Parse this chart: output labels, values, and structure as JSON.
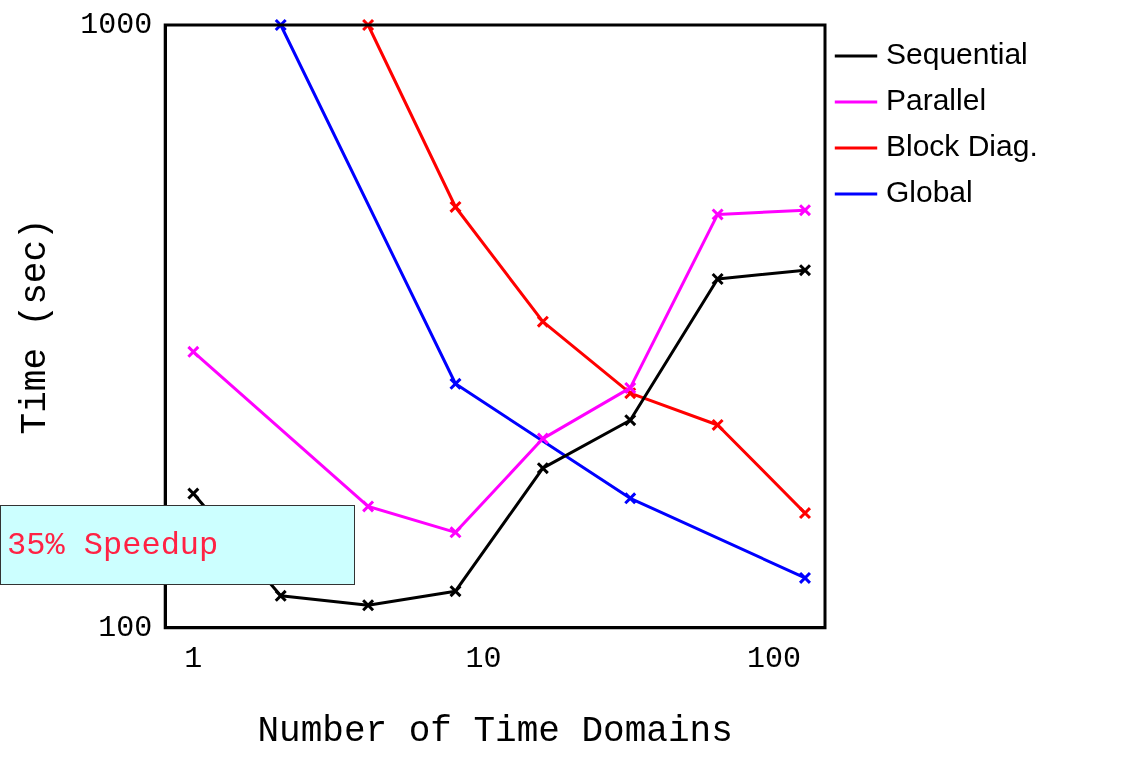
{
  "chart_data": {
    "type": "line",
    "xlabel": "Number of Time Domains",
    "ylabel": "Time (sec)",
    "x": [
      1,
      2,
      4,
      8,
      16,
      32,
      64,
      128
    ],
    "series": [
      {
        "name": "Sequential",
        "color": "#000000",
        "values": [
          167,
          113,
          109,
          115,
          184,
          221,
          379,
          392
        ]
      },
      {
        "name": "Parallel",
        "color": "#ff00ff",
        "values": [
          287,
          null,
          159,
          144,
          206,
          250,
          485,
          493
        ]
      },
      {
        "name": "Block Diag.",
        "color": "#ff0000",
        "values": [
          null,
          null,
          1000,
          499,
          322,
          245,
          217,
          155
        ]
      },
      {
        "name": "Global",
        "color": "#0000ff",
        "values": [
          null,
          1000,
          null,
          254,
          null,
          164,
          null,
          121
        ]
      }
    ],
    "xlim": [
      0.8,
      150
    ],
    "ylim": [
      100,
      1000
    ],
    "xticks": [
      1,
      10,
      100
    ],
    "yticks": [
      100,
      1000
    ],
    "log": "xy",
    "legend": "top right",
    "marker": "cross",
    "annotations": [
      "35% Speedup"
    ]
  }
}
